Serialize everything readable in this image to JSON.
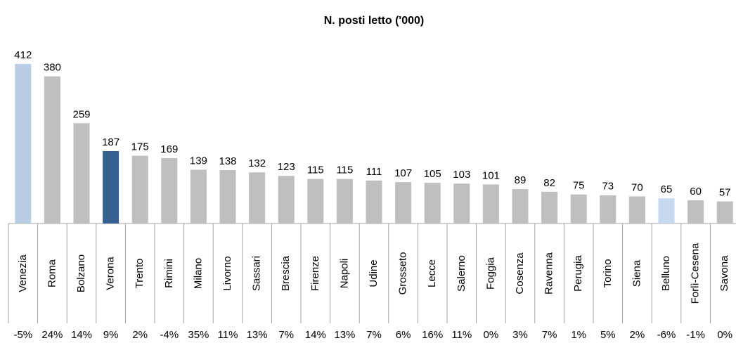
{
  "chart_data": {
    "type": "bar",
    "title": "N. posti letto ('000)",
    "categories": [
      "Venezia",
      "Roma",
      "Bolzano",
      "Verona",
      "Trento",
      "Rimini",
      "Milano",
      "Livorno",
      "Sassari",
      "Brescia",
      "Firenze",
      "Napoli",
      "Udine",
      "Grosseto",
      "Lecce",
      "Salerno",
      "Foggia",
      "Cosenza",
      "Ravenna",
      "Perugia",
      "Torino",
      "Siena",
      "Belluno",
      "Forlì-Cesena",
      "Savona"
    ],
    "values": [
      412,
      380,
      259,
      187,
      175,
      169,
      139,
      138,
      132,
      123,
      115,
      115,
      111,
      107,
      105,
      103,
      101,
      89,
      82,
      75,
      73,
      70,
      65,
      60,
      57
    ],
    "colors": [
      "#b9cde5",
      "#bfbfbf",
      "#bfbfbf",
      "#376092",
      "#bfbfbf",
      "#bfbfbf",
      "#bfbfbf",
      "#bfbfbf",
      "#bfbfbf",
      "#bfbfbf",
      "#bfbfbf",
      "#bfbfbf",
      "#bfbfbf",
      "#bfbfbf",
      "#bfbfbf",
      "#bfbfbf",
      "#bfbfbf",
      "#bfbfbf",
      "#bfbfbf",
      "#bfbfbf",
      "#bfbfbf",
      "#bfbfbf",
      "#c6d9f1",
      "#bfbfbf",
      "#bfbfbf"
    ],
    "changes": [
      "-5%",
      "24%",
      "14%",
      "9%",
      "2%",
      "-4%",
      "35%",
      "11%",
      "13%",
      "7%",
      "14%",
      "13%",
      "7%",
      "6%",
      "16%",
      "11%",
      "0%",
      "3%",
      "7%",
      "1%",
      "5%",
      "2%",
      "-6%",
      "-1%",
      "0%"
    ]
  }
}
